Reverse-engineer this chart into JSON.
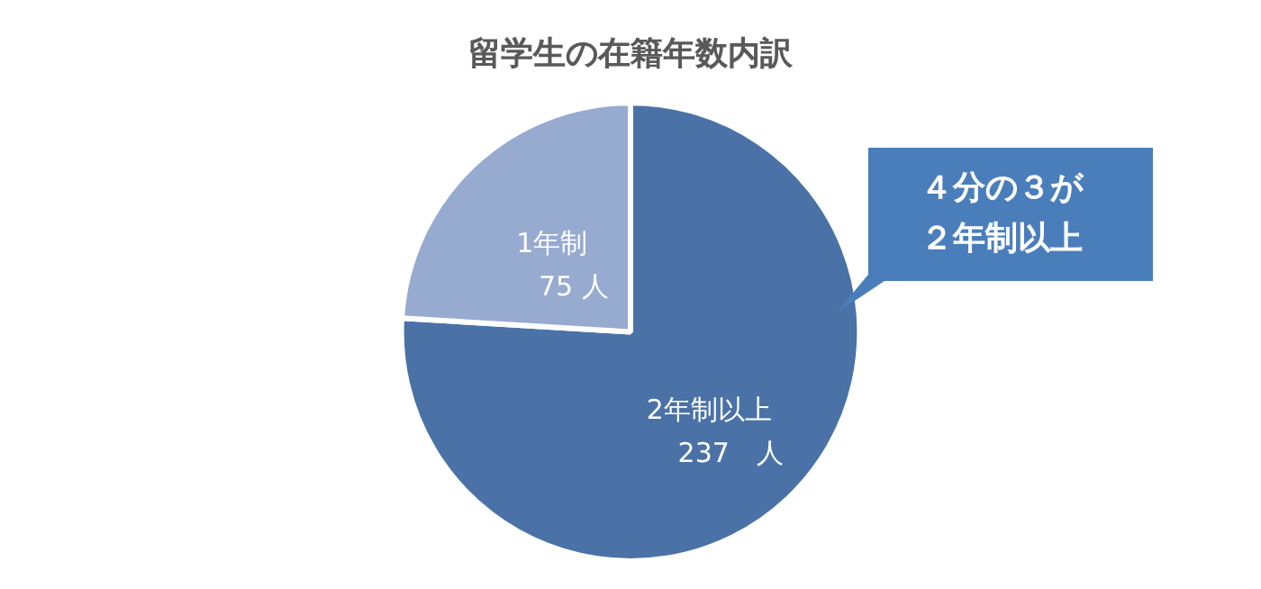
{
  "chart_data": {
    "type": "pie",
    "title": "留学生の在籍年数内訳",
    "categories": [
      "2年制以上",
      "1年制"
    ],
    "values": [
      237,
      75
    ],
    "colors": [
      "#4a72a7",
      "#97aad0"
    ],
    "value_labels": [
      "237　人",
      "75 人"
    ],
    "annotations": [
      "４分の３が２年制以上"
    ],
    "legend": false
  }
}
